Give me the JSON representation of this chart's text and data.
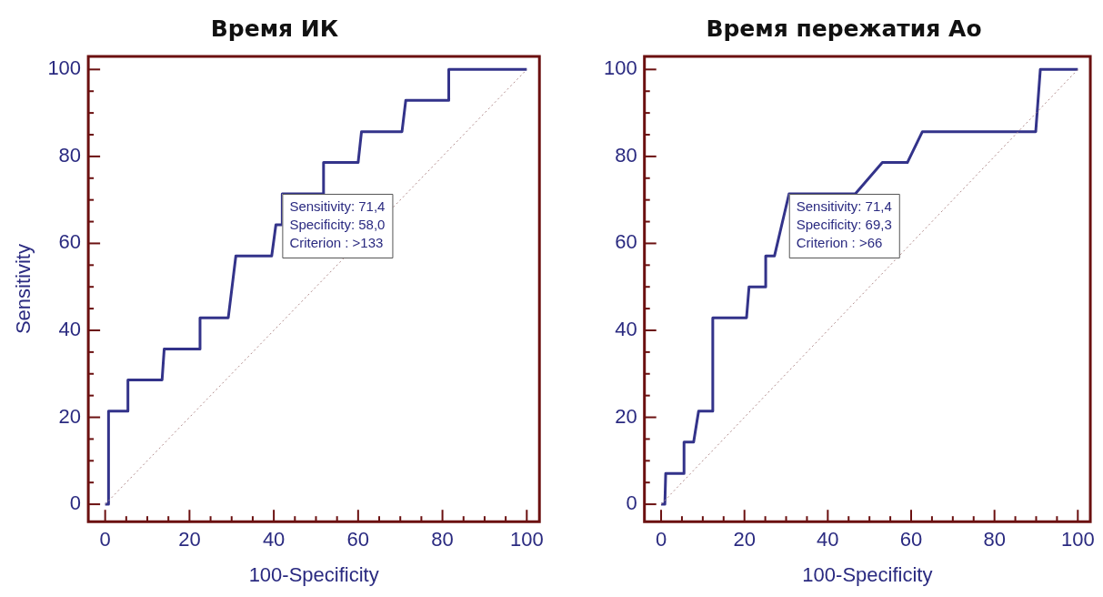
{
  "chart_data": [
    {
      "type": "line",
      "title": "Время ИК",
      "xlabel": "100-Specificity",
      "ylabel": "Sensitivity",
      "marker": "none",
      "legend": false,
      "xlim": [
        -4,
        103
      ],
      "ylim": [
        -4,
        103
      ],
      "xticks": [
        0,
        {
          "value": 5,
          "label": null
        },
        {
          "value": 10,
          "label": null
        },
        {
          "value": 15,
          "label": null
        },
        20,
        {
          "value": 25,
          "label": null
        },
        {
          "value": 30,
          "label": null
        },
        {
          "value": 35,
          "label": null
        },
        40,
        {
          "value": 45,
          "label": null
        },
        {
          "value": 50,
          "label": null
        },
        {
          "value": 55,
          "label": null
        },
        60,
        {
          "value": 65,
          "label": null
        },
        {
          "value": 70,
          "label": null
        },
        {
          "value": 75,
          "label": null
        },
        80,
        {
          "value": 85,
          "label": null
        },
        {
          "value": 90,
          "label": null
        },
        {
          "value": 95,
          "label": null
        },
        100
      ],
      "yticks": [
        0,
        {
          "value": 5,
          "label": null
        },
        {
          "value": 10,
          "label": null
        },
        {
          "value": 15,
          "label": null
        },
        20,
        {
          "value": 25,
          "label": null
        },
        {
          "value": 30,
          "label": null
        },
        {
          "value": 35,
          "label": null
        },
        40,
        {
          "value": 45,
          "label": null
        },
        {
          "value": 50,
          "label": null
        },
        {
          "value": 55,
          "label": null
        },
        60,
        {
          "value": 65,
          "label": null
        },
        {
          "value": 70,
          "label": null
        },
        {
          "value": 75,
          "label": null
        },
        80,
        {
          "value": 85,
          "label": null
        },
        {
          "value": 90,
          "label": null
        },
        {
          "value": 95,
          "label": null
        },
        100
      ],
      "series": [
        {
          "type": "line",
          "color": "#b08a8a",
          "line_style": "dotted",
          "x": [
            0,
            100
          ],
          "values": [
            0,
            100
          ]
        },
        {
          "type": "line",
          "color": "#33338a",
          "line_style": "solid",
          "x": [
            0,
            0.8,
            0.8,
            5.4,
            5.4,
            13.5,
            14,
            22.5,
            22.5,
            29.2,
            31,
            39.5,
            40.5,
            42,
            42,
            51.8,
            51.8,
            60,
            60.8,
            70.4,
            71.3,
            81.5,
            81.5,
            100
          ],
          "values": [
            0,
            0,
            21.4,
            21.4,
            28.6,
            28.6,
            35.7,
            35.7,
            42.9,
            42.9,
            57.1,
            57.1,
            64.3,
            64.3,
            71.4,
            71.4,
            78.6,
            78.6,
            85.7,
            85.7,
            92.9,
            92.9,
            100,
            100
          ]
        }
      ],
      "annotations": [
        {
          "text": "Sensitivity: 71,4\nSpecificity: 58,0\nCriterion : >133",
          "x": 42,
          "y": 71.4
        }
      ]
    },
    {
      "type": "line",
      "title": "Время пережатия Ao",
      "xlabel": "100-Specificity",
      "marker": "none",
      "legend": false,
      "xlim": [
        -4,
        103
      ],
      "ylim": [
        -4,
        103
      ],
      "xticks": [
        0,
        {
          "value": 5,
          "label": null
        },
        {
          "value": 10,
          "label": null
        },
        {
          "value": 15,
          "label": null
        },
        20,
        {
          "value": 25,
          "label": null
        },
        {
          "value": 30,
          "label": null
        },
        {
          "value": 35,
          "label": null
        },
        40,
        {
          "value": 45,
          "label": null
        },
        {
          "value": 50,
          "label": null
        },
        {
          "value": 55,
          "label": null
        },
        60,
        {
          "value": 65,
          "label": null
        },
        {
          "value": 70,
          "label": null
        },
        {
          "value": 75,
          "label": null
        },
        80,
        {
          "value": 85,
          "label": null
        },
        {
          "value": 90,
          "label": null
        },
        {
          "value": 95,
          "label": null
        },
        100
      ],
      "yticks": [
        0,
        {
          "value": 5,
          "label": null
        },
        {
          "value": 10,
          "label": null
        },
        {
          "value": 15,
          "label": null
        },
        20,
        {
          "value": 25,
          "label": null
        },
        {
          "value": 30,
          "label": null
        },
        {
          "value": 35,
          "label": null
        },
        40,
        {
          "value": 45,
          "label": null
        },
        {
          "value": 50,
          "label": null
        },
        {
          "value": 55,
          "label": null
        },
        60,
        {
          "value": 65,
          "label": null
        },
        {
          "value": 70,
          "label": null
        },
        {
          "value": 75,
          "label": null
        },
        80,
        {
          "value": 85,
          "label": null
        },
        {
          "value": 90,
          "label": null
        },
        {
          "value": 95,
          "label": null
        },
        100
      ],
      "series": [
        {
          "type": "line",
          "color": "#b08a8a",
          "line_style": "dotted",
          "x": [
            0,
            100
          ],
          "values": [
            0,
            100
          ]
        },
        {
          "type": "line",
          "color": "#33338a",
          "line_style": "solid",
          "x": [
            0,
            0.9,
            1.1,
            5.5,
            5.5,
            7.8,
            9,
            12.4,
            12.4,
            20.5,
            21.1,
            25.1,
            25.1,
            27.2,
            30.7,
            46.6,
            53.1,
            59.1,
            62.7,
            89.9,
            91,
            100
          ],
          "values": [
            0,
            0,
            7.1,
            7.1,
            14.3,
            14.3,
            21.4,
            21.4,
            42.9,
            42.9,
            50,
            50,
            57.1,
            57.1,
            71.4,
            71.4,
            78.6,
            78.6,
            85.7,
            85.7,
            100,
            100
          ]
        }
      ],
      "annotations": [
        {
          "text": "Sensitivity: 71,4\nSpecificity: 69,3\nCriterion : >66",
          "x": 30.7,
          "y": 71.4
        }
      ]
    }
  ]
}
